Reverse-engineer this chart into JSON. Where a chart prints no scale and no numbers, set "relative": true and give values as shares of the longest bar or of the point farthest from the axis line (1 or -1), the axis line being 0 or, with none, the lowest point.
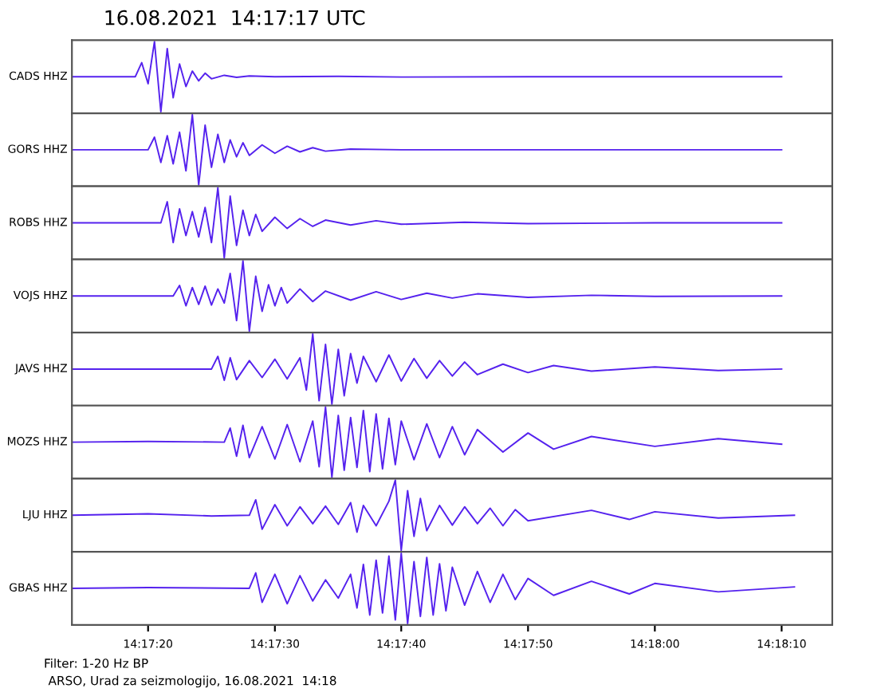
{
  "chart_data": [
    {
      "type": "line",
      "title": "16.08.2021  14:17:17 UTC",
      "ylabel": "CADS HHZ",
      "relative": true,
      "tick_labels": false,
      "xlim": [
        14.28722,
        14.30389
      ],
      "x": [
        14.28722,
        14.28861,
        14.28875,
        14.28889,
        14.28903,
        14.28917,
        14.28931,
        14.28944,
        14.28958,
        14.28972,
        14.28986,
        14.29,
        14.29014,
        14.29028,
        14.29056,
        14.29083,
        14.29111,
        14.29167,
        14.29306,
        14.29444,
        14.29722,
        14.3,
        14.30278
      ],
      "series": [
        {
          "color": "#5522ee",
          "values": [
            0.5,
            0.5,
            0.7,
            0.4,
            1.0,
            0.0,
            0.9,
            0.2,
            0.68,
            0.36,
            0.58,
            0.44,
            0.55,
            0.47,
            0.52,
            0.49,
            0.51,
            0.5,
            0.505,
            0.495,
            0.5,
            0.5,
            0.5
          ]
        }
      ]
    },
    {
      "type": "line",
      "ylabel": "GORS HHZ",
      "relative": true,
      "tick_labels": false,
      "xlim": [
        14.28722,
        14.30389
      ],
      "x": [
        14.28722,
        14.28889,
        14.28903,
        14.28917,
        14.28931,
        14.28944,
        14.28958,
        14.28972,
        14.28986,
        14.29,
        14.29014,
        14.29028,
        14.29042,
        14.29056,
        14.29069,
        14.29083,
        14.29097,
        14.29111,
        14.29139,
        14.29167,
        14.29194,
        14.29222,
        14.2925,
        14.29278,
        14.29333,
        14.29444,
        14.29722,
        14.3,
        14.30278
      ],
      "series": [
        {
          "color": "#5522ee",
          "values": [
            0.5,
            0.5,
            0.68,
            0.32,
            0.7,
            0.3,
            0.75,
            0.2,
            1.0,
            0.0,
            0.85,
            0.25,
            0.72,
            0.32,
            0.64,
            0.4,
            0.6,
            0.42,
            0.57,
            0.45,
            0.55,
            0.47,
            0.53,
            0.48,
            0.51,
            0.5,
            0.5,
            0.5,
            0.5
          ]
        }
      ]
    },
    {
      "type": "line",
      "ylabel": "ROBS HHZ",
      "relative": true,
      "tick_labels": false,
      "xlim": [
        14.28722,
        14.30389
      ],
      "x": [
        14.28722,
        14.28917,
        14.28931,
        14.28944,
        14.28958,
        14.28972,
        14.28986,
        14.29,
        14.29014,
        14.29028,
        14.29042,
        14.29056,
        14.29069,
        14.29083,
        14.29097,
        14.29111,
        14.29125,
        14.29139,
        14.29167,
        14.29194,
        14.29222,
        14.2925,
        14.29278,
        14.29333,
        14.29389,
        14.29444,
        14.29583,
        14.29722,
        14.3,
        14.30278
      ],
      "series": [
        {
          "color": "#5522ee",
          "values": [
            0.5,
            0.5,
            0.8,
            0.22,
            0.7,
            0.32,
            0.66,
            0.3,
            0.72,
            0.22,
            1.0,
            0.0,
            0.88,
            0.18,
            0.68,
            0.32,
            0.62,
            0.38,
            0.58,
            0.42,
            0.56,
            0.45,
            0.54,
            0.47,
            0.53,
            0.48,
            0.51,
            0.49,
            0.5,
            0.5
          ]
        }
      ]
    },
    {
      "type": "line",
      "ylabel": "VOJS HHZ",
      "relative": true,
      "tick_labels": false,
      "xlim": [
        14.28722,
        14.30389
      ],
      "x": [
        14.28722,
        14.28944,
        14.28958,
        14.28972,
        14.28986,
        14.29,
        14.29014,
        14.29028,
        14.29042,
        14.29056,
        14.29069,
        14.29083,
        14.29097,
        14.29111,
        14.29125,
        14.29139,
        14.29153,
        14.29167,
        14.29181,
        14.29194,
        14.29222,
        14.2925,
        14.29278,
        14.29333,
        14.29389,
        14.29444,
        14.295,
        14.29556,
        14.29611,
        14.29722,
        14.29861,
        14.3,
        14.30278
      ],
      "series": [
        {
          "color": "#5522ee",
          "values": [
            0.5,
            0.5,
            0.65,
            0.36,
            0.62,
            0.38,
            0.64,
            0.37,
            0.6,
            0.4,
            0.82,
            0.15,
            1.0,
            0.0,
            0.78,
            0.28,
            0.66,
            0.36,
            0.62,
            0.4,
            0.6,
            0.42,
            0.57,
            0.44,
            0.56,
            0.45,
            0.54,
            0.47,
            0.53,
            0.48,
            0.51,
            0.495,
            0.5
          ]
        }
      ]
    },
    {
      "type": "line",
      "ylabel": "JAVS HHZ",
      "relative": true,
      "tick_labels": false,
      "xlim": [
        14.28722,
        14.30389
      ],
      "x": [
        14.28722,
        14.29028,
        14.29042,
        14.29056,
        14.29069,
        14.29083,
        14.29111,
        14.29139,
        14.29167,
        14.29194,
        14.29222,
        14.29236,
        14.2925,
        14.29264,
        14.29278,
        14.29292,
        14.29306,
        14.29319,
        14.29333,
        14.29347,
        14.29361,
        14.29389,
        14.29417,
        14.29444,
        14.29472,
        14.295,
        14.29528,
        14.29556,
        14.29583,
        14.29611,
        14.29667,
        14.29722,
        14.29778,
        14.29861,
        14.3,
        14.30139,
        14.30278
      ],
      "series": [
        {
          "color": "#5522ee",
          "values": [
            0.5,
            0.5,
            0.68,
            0.34,
            0.66,
            0.35,
            0.62,
            0.38,
            0.64,
            0.36,
            0.66,
            0.2,
            1.0,
            0.05,
            0.85,
            0.0,
            0.78,
            0.12,
            0.72,
            0.3,
            0.68,
            0.32,
            0.7,
            0.33,
            0.65,
            0.37,
            0.62,
            0.4,
            0.6,
            0.42,
            0.57,
            0.45,
            0.55,
            0.47,
            0.53,
            0.48,
            0.5
          ]
        }
      ]
    },
    {
      "type": "line",
      "ylabel": "MOZS HHZ",
      "relative": true,
      "tick_labels": false,
      "xlim": [
        14.28722,
        14.30389
      ],
      "x": [
        14.28722,
        14.28889,
        14.29056,
        14.29069,
        14.29083,
        14.29097,
        14.29111,
        14.29139,
        14.29167,
        14.29194,
        14.29222,
        14.2925,
        14.29264,
        14.29278,
        14.29292,
        14.29306,
        14.29319,
        14.29333,
        14.29347,
        14.29361,
        14.29375,
        14.29389,
        14.29403,
        14.29417,
        14.29431,
        14.29444,
        14.29472,
        14.295,
        14.29528,
        14.29556,
        14.29583,
        14.29611,
        14.29667,
        14.29722,
        14.29778,
        14.29861,
        14.3,
        14.30139,
        14.30278
      ],
      "series": [
        {
          "color": "#5522ee",
          "values": [
            0.5,
            0.51,
            0.5,
            0.7,
            0.3,
            0.74,
            0.28,
            0.72,
            0.26,
            0.75,
            0.22,
            0.8,
            0.15,
            1.0,
            0.0,
            0.88,
            0.1,
            0.85,
            0.14,
            0.95,
            0.08,
            0.9,
            0.12,
            0.84,
            0.18,
            0.8,
            0.25,
            0.76,
            0.28,
            0.72,
            0.32,
            0.68,
            0.36,
            0.63,
            0.4,
            0.58,
            0.44,
            0.55,
            0.47
          ]
        }
      ]
    },
    {
      "type": "line",
      "ylabel": "LJU HHZ",
      "relative": true,
      "tick_labels": false,
      "xlim": [
        14.28722,
        14.30389
      ],
      "x": [
        14.28722,
        14.28889,
        14.29028,
        14.29111,
        14.29125,
        14.29139,
        14.29167,
        14.29194,
        14.29222,
        14.2925,
        14.29278,
        14.29306,
        14.29333,
        14.29347,
        14.29361,
        14.29389,
        14.29417,
        14.29431,
        14.29444,
        14.29458,
        14.29472,
        14.29486,
        14.295,
        14.29528,
        14.29556,
        14.29583,
        14.29611,
        14.29639,
        14.29667,
        14.29694,
        14.29722,
        14.29861,
        14.29944,
        14.3,
        14.30139,
        14.30306
      ],
      "series": [
        {
          "color": "#5522ee",
          "values": [
            0.5,
            0.52,
            0.49,
            0.5,
            0.72,
            0.3,
            0.65,
            0.35,
            0.62,
            0.38,
            0.63,
            0.37,
            0.68,
            0.26,
            0.64,
            0.35,
            0.7,
            1.0,
            0.0,
            0.85,
            0.2,
            0.74,
            0.28,
            0.64,
            0.36,
            0.62,
            0.38,
            0.6,
            0.35,
            0.58,
            0.42,
            0.57,
            0.44,
            0.55,
            0.46,
            0.5
          ]
        }
      ]
    },
    {
      "type": "line",
      "ylabel": "GBAS HHZ",
      "relative": true,
      "tick_labels": "x",
      "xlim": [
        14.28722,
        14.30389
      ],
      "xticks": [
        {
          "value": 14.28889,
          "label": "14:17:20"
        },
        {
          "value": 14.29167,
          "label": "14:17:30"
        },
        {
          "value": 14.29444,
          "label": "14:17:40"
        },
        {
          "value": 14.29722,
          "label": "14:17:50"
        },
        {
          "value": 14.3,
          "label": "14:18:00"
        },
        {
          "value": 14.30278,
          "label": "14:18:10"
        }
      ],
      "annotations": [
        "Filter: 1-20 Hz BP",
        "ARSO, Urad za seizmologijo, 16.08.2021  14:18"
      ],
      "x": [
        14.28722,
        14.28889,
        14.29111,
        14.29125,
        14.29139,
        14.29167,
        14.29194,
        14.29222,
        14.2925,
        14.29278,
        14.29306,
        14.29333,
        14.29347,
        14.29361,
        14.29375,
        14.29389,
        14.29403,
        14.29417,
        14.29431,
        14.29444,
        14.29458,
        14.29472,
        14.29486,
        14.295,
        14.29514,
        14.29528,
        14.29542,
        14.29556,
        14.29583,
        14.29611,
        14.29639,
        14.29667,
        14.29694,
        14.29722,
        14.29778,
        14.29861,
        14.29944,
        14.3,
        14.30139,
        14.30306
      ],
      "series": [
        {
          "color": "#5522ee",
          "values": [
            0.5,
            0.51,
            0.5,
            0.72,
            0.3,
            0.7,
            0.28,
            0.68,
            0.32,
            0.62,
            0.36,
            0.7,
            0.22,
            0.84,
            0.12,
            0.9,
            0.15,
            0.96,
            0.05,
            1.0,
            0.0,
            0.88,
            0.1,
            0.94,
            0.12,
            0.85,
            0.18,
            0.8,
            0.26,
            0.74,
            0.3,
            0.7,
            0.34,
            0.64,
            0.4,
            0.6,
            0.42,
            0.57,
            0.45,
            0.52
          ]
        }
      ]
    }
  ]
}
